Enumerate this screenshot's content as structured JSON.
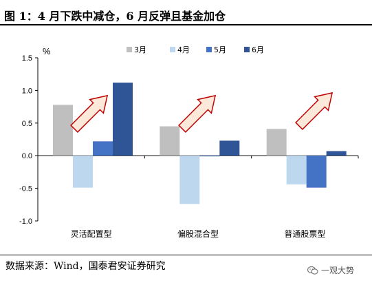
{
  "header": {
    "title": "图 1：4 月下跌中减仓，6 月反弹且基金加仓"
  },
  "footer": {
    "source": "数据来源：Wind，国泰君安证券研究"
  },
  "watermark": {
    "text": "一观大势",
    "icon": "wechat-icon"
  },
  "colors": {
    "s3": "#bfbfbf",
    "s4": "#bdd7ee",
    "s5": "#4472c4",
    "s6": "#2f5597",
    "arrow_fill": "#fce9d9",
    "arrow_stroke": "#c00000"
  },
  "chart_data": {
    "type": "bar",
    "title": "",
    "ylabel": "%",
    "xlabel": "",
    "ylim": [
      -1.0,
      1.5
    ],
    "yticks": [
      -1.0,
      -0.5,
      0.0,
      0.5,
      1.0,
      1.5
    ],
    "ytick_labels": [
      "-1.0",
      "-0.5",
      "0.0",
      "0.5",
      "1.0",
      "1.5"
    ],
    "categories": [
      "灵活配置型",
      "偏股混合型",
      "普通股票型"
    ],
    "series": [
      {
        "name": "3月",
        "color": "#bfbfbf",
        "values": [
          0.78,
          0.45,
          0.41
        ]
      },
      {
        "name": "4月",
        "color": "#bdd7ee",
        "values": [
          -0.49,
          -0.74,
          -0.44
        ]
      },
      {
        "name": "5月",
        "color": "#4472c4",
        "values": [
          0.22,
          -0.01,
          -0.49
        ]
      },
      {
        "name": "6月",
        "color": "#2f5597",
        "values": [
          1.12,
          0.23,
          0.07
        ]
      }
    ],
    "legend_position": "top",
    "grid": false,
    "annotations": [
      "up-arrow",
      "up-arrow",
      "up-arrow"
    ]
  }
}
